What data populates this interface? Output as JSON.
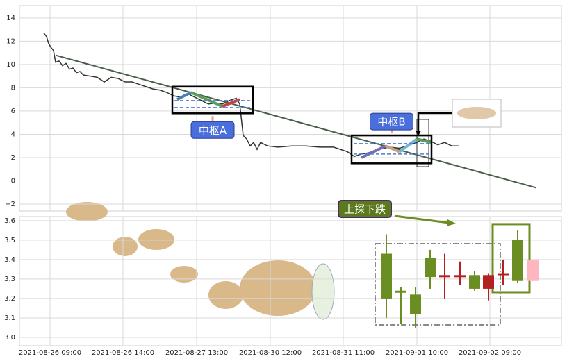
{
  "chart_data": [
    {
      "type": "line",
      "xlim": [
        0,
        780
      ],
      "ylim": [
        -2.6,
        15.07
      ],
      "yticks": [
        {
          "value": -2,
          "label": "−2"
        },
        0,
        2,
        4,
        6,
        8,
        10,
        12,
        14
      ],
      "grid": true,
      "series": [
        {
          "color": "#333333",
          "x": [
            35,
            39,
            42,
            45,
            49,
            52,
            57,
            62,
            67,
            72,
            77,
            82,
            87,
            92,
            102,
            112,
            122,
            132,
            142,
            152,
            162,
            172,
            182,
            192,
            202,
            212,
            222,
            232,
            242,
            252,
            262,
            272,
            282,
            292,
            302,
            312,
            317,
            322,
            327,
            332,
            337,
            342,
            347,
            357,
            372,
            392,
            412,
            432,
            452,
            472,
            482,
            492,
            502,
            517,
            532,
            547,
            562,
            572,
            582,
            592,
            602,
            612,
            622,
            632
          ],
          "values": [
            12.7,
            12.4,
            11.8,
            11.5,
            11.2,
            10.2,
            10.3,
            9.9,
            10.1,
            9.6,
            9.7,
            9.3,
            9.4,
            9.1,
            9.0,
            8.9,
            8.5,
            8.9,
            8.8,
            8.5,
            8.5,
            8.3,
            8.1,
            7.9,
            7.8,
            7.6,
            7.3,
            7.2,
            7.5,
            7.2,
            6.9,
            6.6,
            6.7,
            6.6,
            6.9,
            7.1,
            6.6,
            3.9,
            3.6,
            3.0,
            3.3,
            2.7,
            3.3,
            3.0,
            2.9,
            3.0,
            3.0,
            2.9,
            2.9,
            2.5,
            2.1,
            2.3,
            2.4,
            2.7,
            2.9,
            2.8,
            3.1,
            3.3,
            3.6,
            3.4,
            3.1,
            3.3,
            3.0,
            3.0
          ]
        },
        {
          "color": "#4a5e4a",
          "x": [
            52,
            744
          ],
          "values": [
            10.8,
            -0.6
          ]
        }
      ],
      "zones": [
        {
          "label": "中枢A",
          "xlim": [
            220,
            336
          ],
          "ylim": [
            5.8,
            8.1
          ],
          "inner": [
            6.3,
            6.9
          ],
          "label_side": "below"
        },
        {
          "label": "中枢B",
          "xlim": [
            478,
            593
          ],
          "ylim": [
            1.5,
            3.9
          ],
          "inner": [
            2.3,
            3.2
          ],
          "label_side": "above"
        }
      ],
      "strokes": [
        {
          "color": "#4682b4",
          "x": [
            227,
            247
          ],
          "values": [
            7.0,
            7.6
          ]
        },
        {
          "color": "#5a9e5a",
          "x": [
            247,
            292
          ],
          "values": [
            7.6,
            6.4
          ]
        },
        {
          "color": "#c94040",
          "x": [
            292,
            317
          ],
          "values": [
            6.4,
            7.0
          ]
        },
        {
          "color": "#7b6bb5",
          "x": [
            492,
            527
          ],
          "values": [
            2.0,
            3.0
          ]
        },
        {
          "color": "#c8a07a",
          "x": [
            527,
            547
          ],
          "values": [
            3.0,
            2.5
          ]
        },
        {
          "color": "#6fb7d6",
          "x": [
            547,
            572
          ],
          "values": [
            2.5,
            3.6
          ]
        },
        {
          "color": "#5a9e5a",
          "x": [
            572,
            592
          ],
          "values": [
            3.6,
            3.3
          ]
        }
      ]
    },
    {
      "type": "candlestick",
      "xlim": [
        0,
        780
      ],
      "ylim": [
        2.957,
        3.621
      ],
      "yticks": [
        {
          "value": 3,
          "label": "3.0"
        },
        3.1,
        3.2,
        3.3,
        3.4,
        3.5,
        3.6
      ],
      "xticks": [
        {
          "value": 44,
          "label": "2021-08-26 09:00"
        },
        {
          "value": 149,
          "label": "2021-08-26 14:00"
        },
        {
          "value": 255,
          "label": "2021-08-27 13:00"
        },
        {
          "value": 361,
          "label": "2021-08-30 12:00"
        },
        {
          "value": 466,
          "label": "2021-08-31 11:00"
        },
        {
          "value": 572,
          "label": "2021-09-01 10:00"
        },
        {
          "value": 677,
          "label": "2021-09-02 09:00"
        }
      ],
      "grid": true,
      "x": [
        528,
        549,
        570,
        591,
        612,
        634,
        655,
        675,
        696,
        717,
        739
      ],
      "open": [
        3.2,
        3.23,
        3.12,
        3.31,
        3.32,
        3.32,
        3.25,
        3.32,
        3.33,
        3.29,
        3.4
      ],
      "high": [
        3.53,
        3.26,
        3.26,
        3.45,
        3.43,
        3.39,
        3.34,
        3.33,
        3.4,
        3.55,
        3.4
      ],
      "low": [
        3.1,
        3.07,
        3.05,
        3.25,
        3.2,
        3.27,
        3.24,
        3.19,
        3.27,
        3.28,
        3.29
      ],
      "close": [
        3.43,
        3.24,
        3.22,
        3.41,
        3.31,
        3.32,
        3.32,
        3.25,
        3.32,
        3.5,
        3.29
      ],
      "colors": [
        "#6b8e23",
        "#6b8e23",
        "#6b8e23",
        "#6b8e23",
        "#b22222",
        "#b22222",
        "#6b8e23",
        "#b22222",
        "#b22222",
        "#6b8e23",
        "#ffb6c1"
      ],
      "annotation": "上探下跌",
      "boxes": [
        {
          "style": "dashdot",
          "color": "#444444",
          "xlim": [
            512,
            692
          ],
          "ylim": [
            3.064,
            3.482
          ]
        },
        {
          "style": "solid",
          "color": "#6b8e23",
          "xlim": [
            681,
            734
          ],
          "ylim": [
            3.232,
            3.582
          ]
        }
      ]
    }
  ]
}
